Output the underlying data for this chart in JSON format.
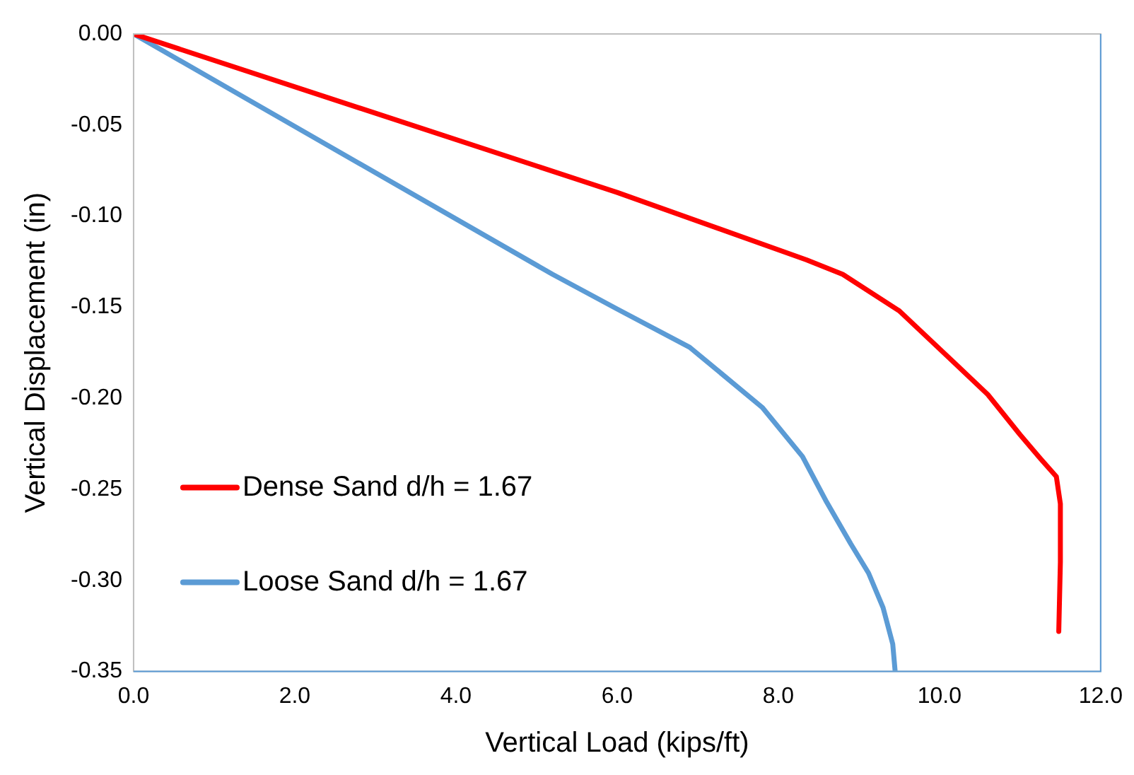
{
  "chart_data": {
    "type": "line",
    "xlabel": "Vertical Load (kips/ft)",
    "ylabel": "Vertical Displacement (in)",
    "xlim": [
      0,
      12
    ],
    "xticks": [
      {
        "value": 0,
        "label": "0.0"
      },
      {
        "value": 2,
        "label": "2.0"
      },
      {
        "value": 4,
        "label": "4.0"
      },
      {
        "value": 6,
        "label": "6.0"
      },
      {
        "value": 8,
        "label": "8.0"
      },
      {
        "value": 10,
        "label": "10.0"
      },
      {
        "value": 12,
        "label": "12.0"
      }
    ],
    "ylim": [
      -0.35,
      0
    ],
    "yticks": [
      {
        "value": 0,
        "label": "0.00"
      },
      {
        "value": -0.05,
        "label": "-0.05"
      },
      {
        "value": -0.1,
        "label": "-0.10"
      },
      {
        "value": -0.15,
        "label": "-0.15"
      },
      {
        "value": -0.2,
        "label": "-0.20"
      },
      {
        "value": -0.25,
        "label": "-0.25"
      },
      {
        "value": -0.3,
        "label": "-0.30"
      },
      {
        "value": -0.35,
        "label": "-0.35"
      }
    ],
    "grid": false,
    "legend": "bottom left",
    "marker": "none",
    "line_style": "solid",
    "series": [
      {
        "name": "Dense Sand d/h = 1.67",
        "color": "#ff0000",
        "x": [
          0,
          6,
          8.35,
          8.8,
          9.5,
          10.1,
          10.6,
          11.0,
          11.25,
          11.45,
          11.5,
          11.5,
          11.48
        ],
        "values": [
          0,
          -0.087,
          -0.124,
          -0.132,
          -0.152,
          -0.177,
          -0.198,
          -0.22,
          -0.233,
          -0.243,
          -0.258,
          -0.29,
          -0.328
        ]
      },
      {
        "name": "Loose Sand d/h = 1.67",
        "color": "#5b9bd5",
        "x": [
          0,
          5.2,
          6.0,
          6.9,
          7.8,
          8.3,
          8.6,
          8.9,
          9.12,
          9.3,
          9.42,
          9.45
        ],
        "values": [
          0,
          -0.132,
          -0.151,
          -0.172,
          -0.205,
          -0.232,
          -0.257,
          -0.28,
          -0.296,
          -0.315,
          -0.335,
          -0.35
        ]
      }
    ]
  }
}
